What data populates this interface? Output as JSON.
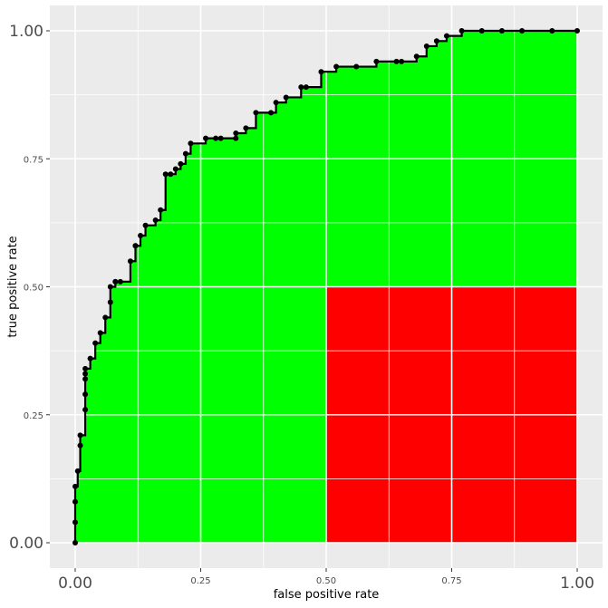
{
  "chart_data": {
    "type": "line",
    "title": "",
    "xlabel": "false positive rate",
    "ylabel": "true positive rate",
    "xlim": [
      0,
      1
    ],
    "ylim": [
      0,
      1
    ],
    "x_ticks": [
      {
        "value": 0,
        "label": "0.00",
        "size": "large"
      },
      {
        "value": 0.25,
        "label": "0.25",
        "size": "small"
      },
      {
        "value": 0.5,
        "label": "0.50",
        "size": "small"
      },
      {
        "value": 0.75,
        "label": "0.75",
        "size": "small"
      },
      {
        "value": 1,
        "label": "1.00",
        "size": "large"
      }
    ],
    "y_ticks": [
      {
        "value": 0,
        "label": "0.00",
        "size": "large"
      },
      {
        "value": 0.25,
        "label": "0.25",
        "size": "small"
      },
      {
        "value": 0.5,
        "label": "0.50",
        "size": "small"
      },
      {
        "value": 0.75,
        "label": "0.75",
        "size": "small"
      },
      {
        "value": 1,
        "label": "1.00",
        "size": "large"
      }
    ],
    "grid": true,
    "legend": "none",
    "colors": {
      "panel": "#ebebeb",
      "grid": "#ffffff",
      "under_curve": "#00ff00",
      "below_half_right": "#ff0000",
      "curve": "#000000"
    },
    "region_red": {
      "x": [
        0.5,
        1
      ],
      "y": [
        0,
        0.5
      ]
    },
    "series": [
      {
        "x": [
          0,
          0,
          0,
          0,
          0.005,
          0.01,
          0.01,
          0.02,
          0.02,
          0.02,
          0.02,
          0.02,
          0.03,
          0.04,
          0.05,
          0.06,
          0.07,
          0.07,
          0.08,
          0.08,
          0.09,
          0.11,
          0.12,
          0.12,
          0.13,
          0.14,
          0.16,
          0.17,
          0.18,
          0.19,
          0.2,
          0.21,
          0.22,
          0.23,
          0.26,
          0.28,
          0.29,
          0.32,
          0.32,
          0.34,
          0.36,
          0.39,
          0.4,
          0.42,
          0.45,
          0.46,
          0.49,
          0.52,
          0.56,
          0.6,
          0.64,
          0.65,
          0.68,
          0.7,
          0.72,
          0.74,
          0.77,
          0.81,
          0.85,
          0.89,
          0.95,
          1
        ],
        "y": [
          0,
          0.04,
          0.08,
          0.11,
          0.14,
          0.19,
          0.21,
          0.26,
          0.29,
          0.32,
          0.33,
          0.34,
          0.36,
          0.39,
          0.41,
          0.44,
          0.47,
          0.5,
          0.51,
          0.51,
          0.51,
          0.55,
          0.58,
          0.58,
          0.6,
          0.62,
          0.63,
          0.65,
          0.72,
          0.72,
          0.73,
          0.74,
          0.76,
          0.78,
          0.79,
          0.79,
          0.79,
          0.79,
          0.8,
          0.81,
          0.84,
          0.84,
          0.86,
          0.87,
          0.89,
          0.89,
          0.92,
          0.93,
          0.93,
          0.94,
          0.94,
          0.94,
          0.95,
          0.97,
          0.98,
          0.99,
          1,
          1,
          1,
          1,
          1,
          1
        ]
      }
    ]
  }
}
